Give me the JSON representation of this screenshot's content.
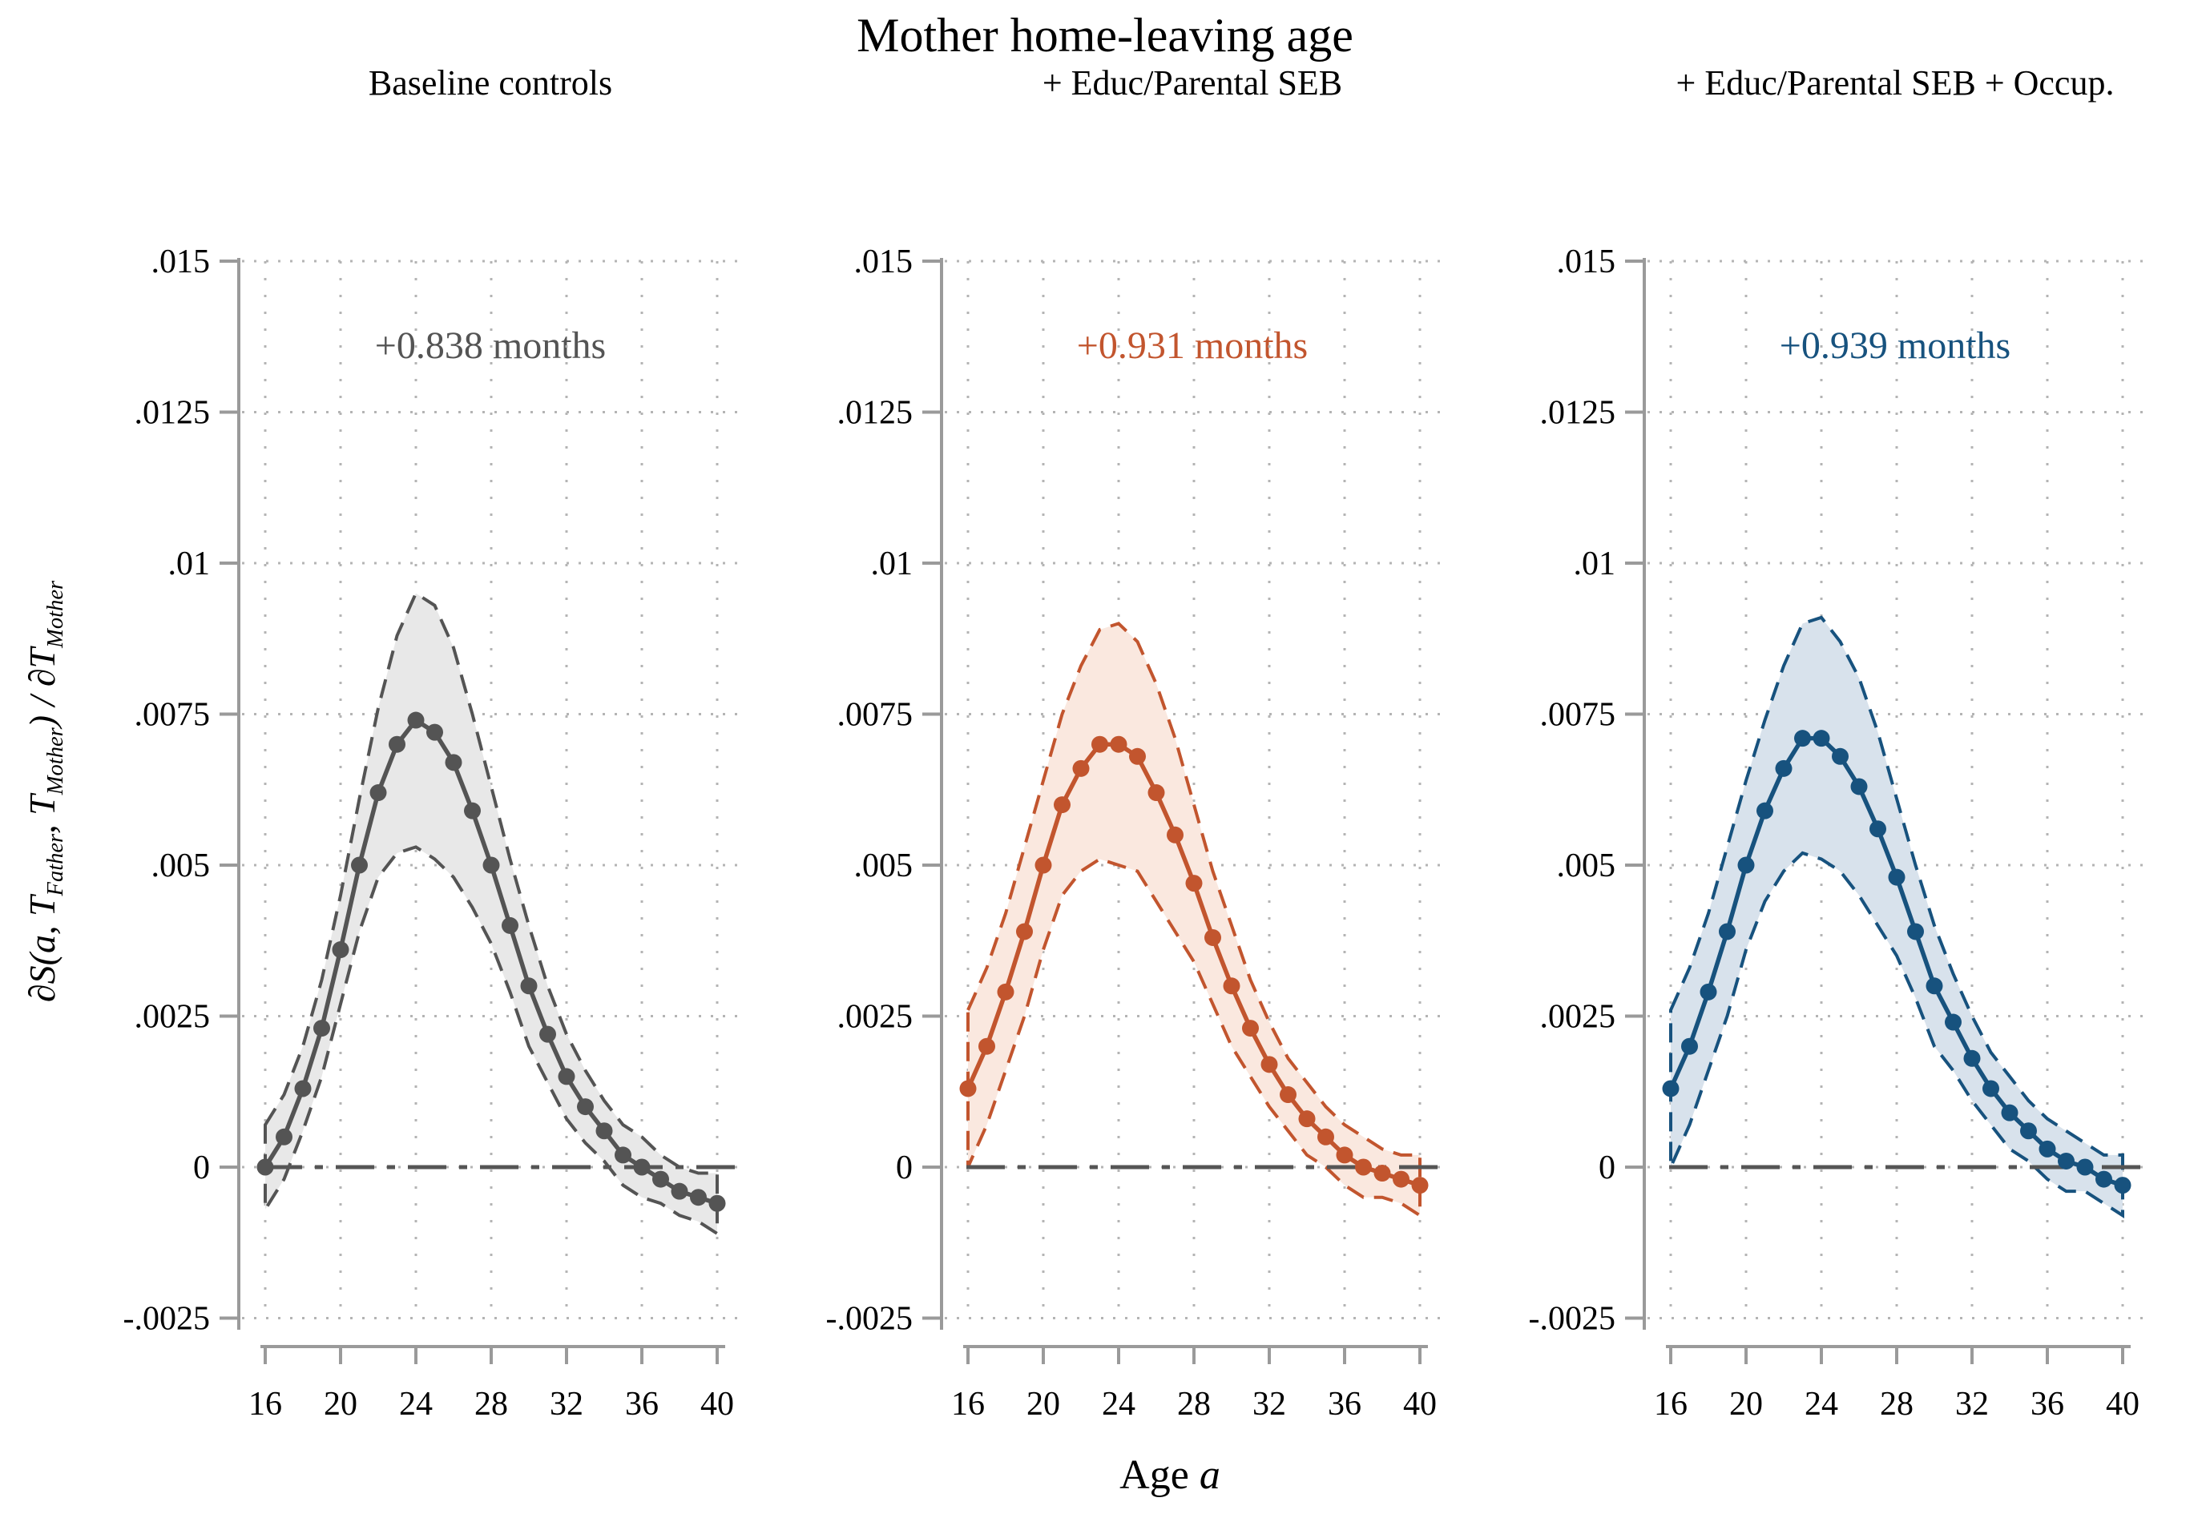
{
  "title": "Mother home-leaving age",
  "xlabel": {
    "text": "Age",
    "var": "a"
  },
  "ylabel": {
    "parts": [
      "∂S(a, T",
      "Father",
      ", T",
      "Mother",
      ") / ∂T",
      "Mother"
    ]
  },
  "colors": {
    "background": "#ffffff",
    "axis": "#9a9a9a",
    "grid": "#b4b4b4",
    "zero_line": "#555555",
    "text": "#000000",
    "panel_gray": "#545454",
    "panel_orange": "#C2552E",
    "panel_blue": "#17527E"
  },
  "chart_data": {
    "type": "line",
    "title": "Mother home-leaving age",
    "xlabel": "Age a",
    "ylabel": "dS(a, T_Father, T_Mother) / dT_Mother",
    "grid": "dotted",
    "legend_position": "none",
    "x": [
      16,
      17,
      18,
      19,
      20,
      21,
      22,
      23,
      24,
      25,
      26,
      27,
      28,
      29,
      30,
      31,
      32,
      33,
      34,
      35,
      36,
      37,
      38,
      39,
      40
    ],
    "xticks": [
      16,
      20,
      24,
      28,
      32,
      36,
      40
    ],
    "yticks": [
      -0.0025,
      0,
      0.0025,
      0.005,
      0.0075,
      0.01,
      0.0125,
      0.015
    ],
    "ytick_labels": [
      "-.0025",
      "0",
      ".0025",
      ".005",
      ".0075",
      ".01",
      ".0125",
      ".015"
    ],
    "xlim": [
      14.6,
      41.1
    ],
    "ylim": [
      -0.0025,
      0.015
    ],
    "panels": [
      {
        "subtitle": "Baseline controls",
        "annotation": "+0.838 months",
        "color": "#545454",
        "band_fill": "#E8E8E8",
        "y": [
          0.0,
          0.0005,
          0.0013,
          0.0023,
          0.0036,
          0.005,
          0.0062,
          0.007,
          0.0074,
          0.0072,
          0.0067,
          0.0059,
          0.005,
          0.004,
          0.003,
          0.0022,
          0.0015,
          0.001,
          0.0006,
          0.0002,
          0.0,
          -0.0002,
          -0.0004,
          -0.0005,
          -0.0006
        ],
        "ci_upper": [
          0.0007,
          0.0012,
          0.002,
          0.0031,
          0.0045,
          0.0061,
          0.0076,
          0.0088,
          0.0095,
          0.0093,
          0.0086,
          0.0075,
          0.0063,
          0.0051,
          0.004,
          0.003,
          0.0022,
          0.0016,
          0.0011,
          0.0007,
          0.0005,
          0.0002,
          0.0,
          -0.0001,
          -0.0001
        ],
        "ci_lower": [
          -0.0007,
          -0.0002,
          0.0006,
          0.0015,
          0.0027,
          0.0039,
          0.0048,
          0.0052,
          0.0053,
          0.0051,
          0.0048,
          0.0043,
          0.0037,
          0.0029,
          0.002,
          0.0014,
          0.0008,
          0.0004,
          0.0001,
          -0.0003,
          -0.0005,
          -0.0006,
          -0.0008,
          -0.0009,
          -0.0011
        ]
      },
      {
        "subtitle": "+ Educ/Parental SEB",
        "annotation": "+0.931 months",
        "color": "#C2552E",
        "band_fill": "#FAE8DF",
        "y": [
          0.0013,
          0.002,
          0.0029,
          0.0039,
          0.005,
          0.006,
          0.0066,
          0.007,
          0.007,
          0.0068,
          0.0062,
          0.0055,
          0.0047,
          0.0038,
          0.003,
          0.0023,
          0.0017,
          0.0012,
          0.0008,
          0.0005,
          0.0002,
          0.0,
          -0.0001,
          -0.0002,
          -0.0003
        ],
        "ci_upper": [
          0.0026,
          0.0033,
          0.0042,
          0.0053,
          0.0064,
          0.0075,
          0.0083,
          0.0089,
          0.009,
          0.0087,
          0.008,
          0.0071,
          0.006,
          0.0049,
          0.004,
          0.0031,
          0.0024,
          0.0018,
          0.0014,
          0.001,
          0.0007,
          0.0005,
          0.0003,
          0.0002,
          0.0002
        ],
        "ci_lower": [
          0.0,
          0.0007,
          0.0016,
          0.0025,
          0.0036,
          0.0045,
          0.0049,
          0.0051,
          0.005,
          0.0049,
          0.0044,
          0.0039,
          0.0034,
          0.0027,
          0.002,
          0.0015,
          0.001,
          0.0006,
          0.0002,
          0.0,
          -0.0003,
          -0.0005,
          -0.0005,
          -0.0006,
          -0.0008
        ]
      },
      {
        "subtitle": "+ Educ/Parental SEB + Occup.",
        "annotation": "+0.939 months",
        "color": "#17527E",
        "band_fill": "#D8E2EC",
        "y": [
          0.0013,
          0.002,
          0.0029,
          0.0039,
          0.005,
          0.0059,
          0.0066,
          0.0071,
          0.0071,
          0.0068,
          0.0063,
          0.0056,
          0.0048,
          0.0039,
          0.003,
          0.0024,
          0.0018,
          0.0013,
          0.0009,
          0.0006,
          0.0003,
          0.0001,
          0.0,
          -0.0002,
          -0.0003
        ],
        "ci_upper": [
          0.0026,
          0.0033,
          0.0042,
          0.0053,
          0.0064,
          0.0074,
          0.0083,
          0.009,
          0.0091,
          0.0087,
          0.0081,
          0.0072,
          0.0061,
          0.005,
          0.004,
          0.0032,
          0.0025,
          0.0019,
          0.0015,
          0.0011,
          0.0008,
          0.0006,
          0.0004,
          0.0002,
          0.0002
        ],
        "ci_lower": [
          0.0,
          0.0007,
          0.0016,
          0.0025,
          0.0036,
          0.0044,
          0.0049,
          0.0052,
          0.0051,
          0.0049,
          0.0045,
          0.004,
          0.0035,
          0.0028,
          0.002,
          0.0016,
          0.0011,
          0.0007,
          0.0003,
          0.0001,
          -0.0002,
          -0.0004,
          -0.0004,
          -0.0006,
          -0.0008
        ]
      }
    ]
  }
}
